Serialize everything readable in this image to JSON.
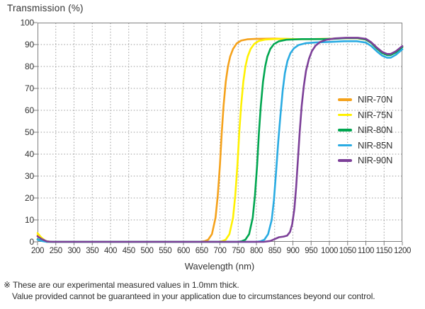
{
  "title": "Transmission (%)",
  "x_axis_title": "Wavelength (nm)",
  "footer": {
    "line1": "※ These are our experimental measured values in 1.0mm thick.",
    "line2": "Value provided cannot be guaranteed in your application due to circumstances beyond our control."
  },
  "colors": {
    "grid": "#9b9b9b",
    "frame": "#7f7f7f",
    "text": "#333333"
  },
  "chart_data": {
    "type": "line",
    "title": "Transmission (%)",
    "xlabel": "Wavelength (nm)",
    "ylabel": "Transmission (%)",
    "xlim": [
      200,
      1200
    ],
    "ylim": [
      0,
      100
    ],
    "x_ticks": [
      200,
      250,
      300,
      350,
      400,
      450,
      500,
      550,
      600,
      650,
      700,
      750,
      800,
      850,
      900,
      950,
      1000,
      1050,
      1100,
      1150,
      1200
    ],
    "y_ticks": [
      0,
      10,
      20,
      30,
      40,
      50,
      60,
      70,
      80,
      90,
      100
    ],
    "grid": "dotted",
    "legend_position": "inside-right-middle",
    "series": [
      {
        "name": "NIR-70N",
        "color": "#F5A21B",
        "points": [
          [
            200,
            3
          ],
          [
            210,
            1.5
          ],
          [
            222,
            0.3
          ],
          [
            235,
            0
          ],
          [
            300,
            0
          ],
          [
            400,
            0
          ],
          [
            500,
            0
          ],
          [
            600,
            0
          ],
          [
            645,
            0
          ],
          [
            658,
            0.3
          ],
          [
            668,
            1
          ],
          [
            678,
            3.5
          ],
          [
            688,
            11
          ],
          [
            694,
            21
          ],
          [
            700,
            35
          ],
          [
            705,
            50
          ],
          [
            710,
            62
          ],
          [
            716,
            73
          ],
          [
            722,
            80
          ],
          [
            728,
            84.5
          ],
          [
            736,
            88
          ],
          [
            746,
            90.5
          ],
          [
            758,
            91.8
          ],
          [
            775,
            92.4
          ],
          [
            800,
            92.6
          ],
          [
            850,
            92.7
          ],
          [
            900,
            92.5
          ],
          [
            950,
            92.5
          ],
          [
            1000,
            92.6
          ],
          [
            1040,
            92.9
          ],
          [
            1075,
            92.9
          ],
          [
            1100,
            92.3
          ],
          [
            1115,
            90.8
          ],
          [
            1130,
            88.3
          ],
          [
            1145,
            86.3
          ],
          [
            1158,
            85.4
          ],
          [
            1168,
            85.4
          ],
          [
            1182,
            86.6
          ],
          [
            1200,
            89
          ]
        ]
      },
      {
        "name": "NIR-75N",
        "color": "#FFF100",
        "points": [
          [
            200,
            4
          ],
          [
            210,
            2
          ],
          [
            222,
            0.4
          ],
          [
            235,
            0
          ],
          [
            400,
            0
          ],
          [
            600,
            0
          ],
          [
            695,
            0
          ],
          [
            706,
            0.3
          ],
          [
            716,
            1
          ],
          [
            726,
            3.5
          ],
          [
            736,
            11
          ],
          [
            742,
            21
          ],
          [
            748,
            35
          ],
          [
            753,
            50
          ],
          [
            758,
            62
          ],
          [
            764,
            73
          ],
          [
            770,
            80
          ],
          [
            776,
            84.5
          ],
          [
            784,
            88
          ],
          [
            794,
            90.3
          ],
          [
            806,
            91.6
          ],
          [
            825,
            92.3
          ],
          [
            860,
            92.6
          ],
          [
            910,
            92.5
          ],
          [
            960,
            92.5
          ],
          [
            1000,
            92.6
          ],
          [
            1040,
            92.9
          ],
          [
            1075,
            92.9
          ],
          [
            1100,
            92.3
          ],
          [
            1115,
            90.7
          ],
          [
            1130,
            88.2
          ],
          [
            1145,
            86.2
          ],
          [
            1158,
            85.3
          ],
          [
            1168,
            85.3
          ],
          [
            1182,
            86.5
          ],
          [
            1200,
            88.9
          ]
        ]
      },
      {
        "name": "NIR-80N",
        "color": "#00A650",
        "points": [
          [
            200,
            1.2
          ],
          [
            212,
            0.5
          ],
          [
            225,
            0
          ],
          [
            400,
            0
          ],
          [
            650,
            0
          ],
          [
            748,
            0
          ],
          [
            760,
            0.3
          ],
          [
            770,
            1
          ],
          [
            780,
            3.5
          ],
          [
            790,
            11
          ],
          [
            796,
            21
          ],
          [
            802,
            35
          ],
          [
            807,
            50
          ],
          [
            812,
            62
          ],
          [
            818,
            73
          ],
          [
            824,
            80
          ],
          [
            830,
            84.5
          ],
          [
            838,
            88
          ],
          [
            848,
            90.2
          ],
          [
            862,
            91.5
          ],
          [
            882,
            92.2
          ],
          [
            925,
            92.5
          ],
          [
            975,
            92.5
          ],
          [
            1010,
            92.6
          ],
          [
            1045,
            92.9
          ],
          [
            1078,
            92.9
          ],
          [
            1100,
            92.3
          ],
          [
            1115,
            90.7
          ],
          [
            1130,
            88.2
          ],
          [
            1145,
            86.1
          ],
          [
            1158,
            85.2
          ],
          [
            1168,
            85.2
          ],
          [
            1182,
            86.4
          ],
          [
            1200,
            88.8
          ]
        ]
      },
      {
        "name": "NIR-85N",
        "color": "#29ABE2",
        "points": [
          [
            200,
            1
          ],
          [
            212,
            0.4
          ],
          [
            225,
            0
          ],
          [
            400,
            0
          ],
          [
            700,
            0
          ],
          [
            800,
            0
          ],
          [
            812,
            0.3
          ],
          [
            822,
            1
          ],
          [
            832,
            3.5
          ],
          [
            842,
            10
          ],
          [
            848,
            19
          ],
          [
            854,
            32
          ],
          [
            860,
            46
          ],
          [
            866,
            58
          ],
          [
            872,
            69
          ],
          [
            878,
            77
          ],
          [
            885,
            82.5
          ],
          [
            893,
            86
          ],
          [
            903,
            88.3
          ],
          [
            916,
            89.8
          ],
          [
            935,
            90.6
          ],
          [
            965,
            91
          ],
          [
            1000,
            91.2
          ],
          [
            1040,
            91.5
          ],
          [
            1075,
            91.5
          ],
          [
            1100,
            90.9
          ],
          [
            1115,
            89.3
          ],
          [
            1130,
            86.9
          ],
          [
            1145,
            84.9
          ],
          [
            1158,
            84
          ],
          [
            1168,
            84
          ],
          [
            1182,
            85.3
          ],
          [
            1200,
            87.8
          ]
        ]
      },
      {
        "name": "NIR-90N",
        "color": "#7C3F98",
        "points": [
          [
            200,
            2.5
          ],
          [
            212,
            1.2
          ],
          [
            226,
            0.2
          ],
          [
            240,
            0
          ],
          [
            400,
            0
          ],
          [
            700,
            0
          ],
          [
            820,
            0
          ],
          [
            838,
            0.4
          ],
          [
            852,
            1.4
          ],
          [
            862,
            2.1
          ],
          [
            874,
            2.4
          ],
          [
            884,
            2.8
          ],
          [
            892,
            4.5
          ],
          [
            898,
            8
          ],
          [
            904,
            15
          ],
          [
            909,
            25
          ],
          [
            914,
            38
          ],
          [
            919,
            51
          ],
          [
            924,
            62
          ],
          [
            930,
            71
          ],
          [
            936,
            78
          ],
          [
            944,
            83.5
          ],
          [
            952,
            87
          ],
          [
            962,
            89.5
          ],
          [
            975,
            91.2
          ],
          [
            992,
            92.2
          ],
          [
            1015,
            92.8
          ],
          [
            1045,
            93.1
          ],
          [
            1078,
            93.1
          ],
          [
            1100,
            92.6
          ],
          [
            1115,
            91
          ],
          [
            1130,
            88.6
          ],
          [
            1145,
            86.6
          ],
          [
            1158,
            85.7
          ],
          [
            1168,
            85.7
          ],
          [
            1182,
            86.9
          ],
          [
            1200,
            89.3
          ]
        ]
      }
    ]
  }
}
